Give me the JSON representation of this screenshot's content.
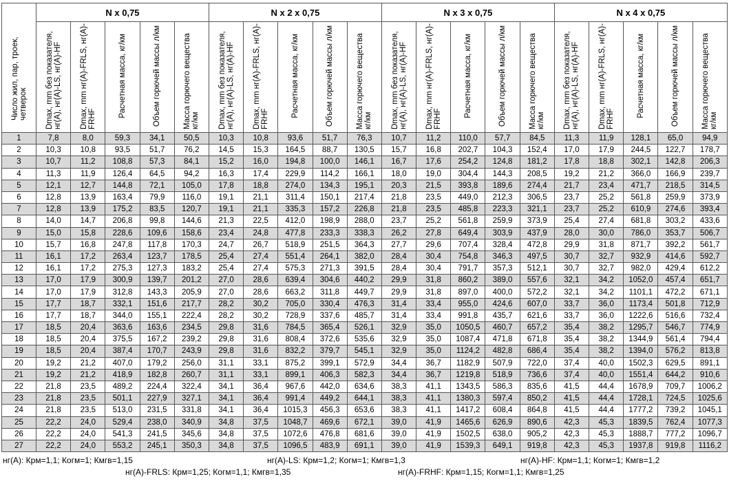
{
  "table": {
    "row_header": "Число жил, пар, троек, четверок",
    "groups": [
      "N x 0,75",
      "N x 2 x 0,75",
      "N x 3 x 0,75",
      "N x 4 x 0,75"
    ],
    "subheaders": [
      "Dmax, mm без показателя, нг(А), нг(А)-LS, нг(А)-HF",
      "Dmax, mm нг(А)-FRLS, нг(А)-FRHF",
      "Расчетная масса, кг/км",
      "Объем горючей массы л/км",
      "Масса горючего вещества кг/км"
    ],
    "rows": [
      [
        1,
        "7,8",
        "8,0",
        "59,3",
        "34,1",
        "50,5",
        "10,3",
        "10,8",
        "93,6",
        "51,7",
        "76,3",
        "10,7",
        "11,2",
        "110,0",
        "57,7",
        "84,5",
        "11,3",
        "11,9",
        "128,1",
        "65,0",
        "94,9"
      ],
      [
        2,
        "10,3",
        "10,8",
        "93,5",
        "51,7",
        "76,2",
        "14,5",
        "15,3",
        "164,5",
        "88,7",
        "130,5",
        "15,7",
        "16,8",
        "202,7",
        "104,3",
        "152,4",
        "17,0",
        "17,9",
        "244,5",
        "122,7",
        "178,7"
      ],
      [
        3,
        "10,7",
        "11,2",
        "108,8",
        "57,3",
        "84,1",
        "15,2",
        "16,0",
        "194,8",
        "100,0",
        "146,1",
        "16,7",
        "17,6",
        "254,2",
        "124,8",
        "181,2",
        "17,8",
        "18,8",
        "302,1",
        "142,8",
        "206,3"
      ],
      [
        4,
        "11,3",
        "11,9",
        "126,4",
        "64,5",
        "94,2",
        "16,3",
        "17,4",
        "229,9",
        "114,2",
        "166,1",
        "18,0",
        "19,0",
        "304,4",
        "144,3",
        "208,5",
        "19,2",
        "21,2",
        "366,0",
        "166,9",
        "239,7"
      ],
      [
        5,
        "12,1",
        "12,7",
        "144,8",
        "72,1",
        "105,0",
        "17,8",
        "18,8",
        "274,0",
        "134,3",
        "195,1",
        "20,3",
        "21,5",
        "393,8",
        "189,6",
        "274,4",
        "21,7",
        "23,4",
        "471,7",
        "218,5",
        "314,5"
      ],
      [
        6,
        "12,8",
        "13,9",
        "163,4",
        "79,9",
        "116,0",
        "19,1",
        "21,1",
        "311,4",
        "150,1",
        "217,4",
        "21,8",
        "23,5",
        "449,0",
        "212,3",
        "306,5",
        "23,7",
        "25,2",
        "561,8",
        "259,9",
        "373,9"
      ],
      [
        7,
        "12,8",
        "13,9",
        "175,2",
        "83,5",
        "120,7",
        "19,1",
        "21,1",
        "335,3",
        "157,2",
        "226,8",
        "21,8",
        "23,5",
        "485,8",
        "223,3",
        "321,1",
        "23,7",
        "25,2",
        "610,9",
        "274,6",
        "393,4"
      ],
      [
        8,
        "14,0",
        "14,7",
        "206,8",
        "99,8",
        "144,6",
        "21,3",
        "22,5",
        "412,0",
        "198,9",
        "288,0",
        "23,7",
        "25,2",
        "561,8",
        "259,9",
        "373,9",
        "25,4",
        "27,4",
        "681,8",
        "303,2",
        "433,6"
      ],
      [
        9,
        "15,0",
        "15,8",
        "228,6",
        "109,6",
        "158,6",
        "23,4",
        "24,8",
        "477,8",
        "233,3",
        "338,3",
        "26,2",
        "27,8",
        "649,4",
        "303,9",
        "437,9",
        "28,0",
        "30,0",
        "786,0",
        "353,7",
        "506,7"
      ],
      [
        10,
        "15,7",
        "16,8",
        "247,8",
        "117,8",
        "170,3",
        "24,7",
        "26,7",
        "518,9",
        "251,5",
        "364,3",
        "27,7",
        "29,6",
        "707,4",
        "328,4",
        "472,8",
        "29,9",
        "31,8",
        "871,7",
        "392,2",
        "561,7"
      ],
      [
        11,
        "16,1",
        "17,2",
        "263,4",
        "123,7",
        "178,5",
        "25,4",
        "27,4",
        "551,4",
        "264,1",
        "382,0",
        "28,4",
        "30,4",
        "754,8",
        "346,3",
        "497,5",
        "30,7",
        "32,7",
        "932,9",
        "414,6",
        "592,7"
      ],
      [
        12,
        "16,1",
        "17,2",
        "275,3",
        "127,3",
        "183,2",
        "25,4",
        "27,4",
        "575,3",
        "271,3",
        "391,5",
        "28,4",
        "30,4",
        "791,7",
        "357,3",
        "512,1",
        "30,7",
        "32,7",
        "982,0",
        "429,4",
        "612,2"
      ],
      [
        13,
        "17,0",
        "17,9",
        "300,9",
        "139,7",
        "201,2",
        "27,0",
        "28,6",
        "639,4",
        "304,6",
        "440,2",
        "29,9",
        "31,8",
        "860,2",
        "389,0",
        "557,6",
        "32,1",
        "34,2",
        "1052,0",
        "457,4",
        "651,7"
      ],
      [
        14,
        "17,0",
        "17,9",
        "312,8",
        "143,3",
        "205,9",
        "27,0",
        "28,6",
        "663,2",
        "311,8",
        "449,7",
        "29,9",
        "31,8",
        "897,0",
        "400,0",
        "572,2",
        "32,1",
        "34,2",
        "1101,1",
        "472,2",
        "671,1"
      ],
      [
        15,
        "17,7",
        "18,7",
        "332,1",
        "151,6",
        "217,7",
        "28,2",
        "30,2",
        "705,0",
        "330,4",
        "476,3",
        "31,4",
        "33,4",
        "955,0",
        "424,6",
        "607,0",
        "33,7",
        "36,0",
        "1173,4",
        "501,8",
        "712,9"
      ],
      [
        16,
        "17,7",
        "18,7",
        "344,0",
        "155,1",
        "222,4",
        "28,2",
        "30,2",
        "728,9",
        "337,6",
        "485,7",
        "31,4",
        "33,4",
        "991,8",
        "435,7",
        "621,6",
        "33,7",
        "36,0",
        "1222,6",
        "516,6",
        "732,4"
      ],
      [
        17,
        "18,5",
        "20,4",
        "363,6",
        "163,6",
        "234,5",
        "29,8",
        "31,6",
        "784,5",
        "365,4",
        "526,1",
        "32,9",
        "35,0",
        "1050,5",
        "460,7",
        "657,2",
        "35,4",
        "38,2",
        "1295,7",
        "546,7",
        "774,9"
      ],
      [
        18,
        "18,5",
        "20,4",
        "375,5",
        "167,2",
        "239,2",
        "29,8",
        "31,6",
        "808,4",
        "372,6",
        "535,6",
        "32,9",
        "35,0",
        "1087,4",
        "471,8",
        "671,8",
        "35,4",
        "38,2",
        "1344,9",
        "561,4",
        "794,4"
      ],
      [
        19,
        "18,5",
        "20,4",
        "387,4",
        "170,7",
        "243,9",
        "29,8",
        "31,6",
        "832,2",
        "379,7",
        "545,1",
        "32,9",
        "35,0",
        "1124,2",
        "482,8",
        "686,4",
        "35,4",
        "38,2",
        "1394,0",
        "576,2",
        "813,8"
      ],
      [
        20,
        "19,2",
        "21,2",
        "407,0",
        "179,2",
        "256,0",
        "31,1",
        "33,1",
        "875,2",
        "399,1",
        "572,9",
        "34,4",
        "36,7",
        "1182,9",
        "507,9",
        "722,0",
        "37,4",
        "40,0",
        "1502,3",
        "629,5",
        "891,1"
      ],
      [
        21,
        "19,2",
        "21,2",
        "418,9",
        "182,8",
        "260,7",
        "31,1",
        "33,1",
        "899,1",
        "406,3",
        "582,3",
        "34,4",
        "36,7",
        "1219,8",
        "518,9",
        "736,6",
        "37,4",
        "40,0",
        "1551,4",
        "644,2",
        "910,6"
      ],
      [
        22,
        "21,8",
        "23,5",
        "489,2",
        "224,4",
        "322,4",
        "34,1",
        "36,4",
        "967,6",
        "442,0",
        "634,6",
        "38,3",
        "41,1",
        "1343,5",
        "586,3",
        "835,6",
        "41,5",
        "44,4",
        "1678,9",
        "709,7",
        "1006,2"
      ],
      [
        23,
        "21,8",
        "23,5",
        "501,1",
        "227,9",
        "327,1",
        "34,1",
        "36,4",
        "991,4",
        "449,2",
        "644,1",
        "38,3",
        "41,1",
        "1380,3",
        "597,4",
        "850,2",
        "41,5",
        "44,4",
        "1728,1",
        "724,5",
        "1025,6"
      ],
      [
        24,
        "21,8",
        "23,5",
        "513,0",
        "231,5",
        "331,8",
        "34,1",
        "36,4",
        "1015,3",
        "456,3",
        "653,6",
        "38,3",
        "41,1",
        "1417,2",
        "608,4",
        "864,8",
        "41,5",
        "44,4",
        "1777,2",
        "739,2",
        "1045,1"
      ],
      [
        25,
        "22,2",
        "24,0",
        "529,4",
        "238,0",
        "340,9",
        "34,8",
        "37,5",
        "1048,7",
        "469,6",
        "672,1",
        "39,0",
        "41,9",
        "1465,6",
        "626,9",
        "890,6",
        "42,3",
        "45,3",
        "1839,5",
        "762,4",
        "1077,3"
      ],
      [
        26,
        "22,2",
        "24,0",
        "541,3",
        "241,5",
        "345,6",
        "34,8",
        "37,5",
        "1072,6",
        "476,8",
        "681,6",
        "39,0",
        "41,9",
        "1502,5",
        "638,0",
        "905,2",
        "42,3",
        "45,3",
        "1888,7",
        "777,2",
        "1096,7"
      ],
      [
        27,
        "22,2",
        "24,0",
        "553,2",
        "245,1",
        "350,3",
        "34,8",
        "37,5",
        "1096,5",
        "483,9",
        "691,1",
        "39,0",
        "41,9",
        "1539,3",
        "649,1",
        "919,8",
        "42,3",
        "45,3",
        "1937,8",
        "919,8",
        "1116,2"
      ]
    ]
  },
  "notes": {
    "line1": [
      "нг(А): Крм=1,1;  Когм=1;  Кмгв=1,15",
      "нг(А)-LS: Крм=1,2;  Когм=1;  Кмгв=1,3",
      "нг(А)-HF: Крм=1,1;  Когм=1;  Кмгв=1,2"
    ],
    "line2": [
      "нг(А)-FRLS: Крм=1,25;  Когм=1,1;  Кмгв=1,35",
      "нг(А)-FRHF: Крм=1,15;  Когм=1,1;  Кмгв=1,25"
    ]
  }
}
